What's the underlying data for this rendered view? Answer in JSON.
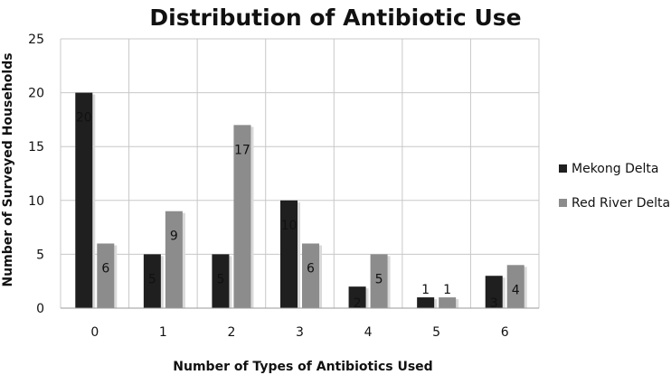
{
  "chart_data": {
    "type": "bar",
    "title": "Distribution of Antibiotic Use",
    "xlabel": "Number of Types of Antibiotics Used",
    "ylabel": "Number of Surveyed Households",
    "categories": [
      "0",
      "1",
      "2",
      "3",
      "4",
      "5",
      "6"
    ],
    "yticks": [
      "0",
      "5",
      "10",
      "15",
      "20",
      "25"
    ],
    "ylim": [
      0,
      25
    ],
    "grid": true,
    "legend_position": "right",
    "series": [
      {
        "name": "Mekong Delta",
        "values": [
          20,
          5,
          5,
          10,
          2,
          1,
          3
        ],
        "color": "#1f1f1f"
      },
      {
        "name": "Red River Delta",
        "values": [
          6,
          9,
          17,
          6,
          5,
          1,
          4
        ],
        "color": "#8c8c8c"
      }
    ]
  }
}
